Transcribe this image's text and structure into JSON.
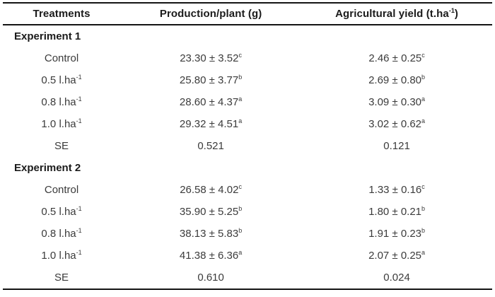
{
  "table": {
    "header": {
      "treatments": "Treatments",
      "production": "Production/plant (g)",
      "yield_pre": "Agricultural yield (t.ha",
      "yield_sup": "-1",
      "yield_post": ")"
    },
    "sections": [
      {
        "title": "Experiment 1",
        "rows": [
          {
            "treatment": "Control",
            "treatment_sup": "",
            "production": "23.30 ± 3.52",
            "production_sup": "c",
            "yield": "2.46 ± 0.25",
            "yield_sup": "c"
          },
          {
            "treatment": "0.5 l.ha",
            "treatment_sup": "-1",
            "production": "25.80 ± 3.77",
            "production_sup": "b",
            "yield": "2.69 ± 0.80",
            "yield_sup": "b"
          },
          {
            "treatment": "0.8 l.ha",
            "treatment_sup": "-1",
            "production": "28.60 ± 4.37",
            "production_sup": "a",
            "yield": "3.09 ± 0.30",
            "yield_sup": "a"
          },
          {
            "treatment": "1.0 l.ha",
            "treatment_sup": "-1",
            "production": "29.32 ± 4.51",
            "production_sup": "a",
            "yield": "3.02 ± 0.62",
            "yield_sup": "a"
          },
          {
            "treatment": "SE",
            "treatment_sup": "",
            "production": "0.521",
            "production_sup": "",
            "yield": "0.121",
            "yield_sup": ""
          }
        ]
      },
      {
        "title": "Experiment 2",
        "rows": [
          {
            "treatment": "Control",
            "treatment_sup": "",
            "production": "26.58 ± 4.02",
            "production_sup": "c",
            "yield": "1.33 ± 0.16",
            "yield_sup": "c"
          },
          {
            "treatment": "0.5 l.ha",
            "treatment_sup": "-1",
            "production": "35.90 ± 5.25",
            "production_sup": "b",
            "yield": "1.80 ± 0.21",
            "yield_sup": "b"
          },
          {
            "treatment": "0.8 l.ha",
            "treatment_sup": "-1",
            "production": "38.13 ± 5.83",
            "production_sup": "b",
            "yield": "1.91 ± 0.23",
            "yield_sup": "b"
          },
          {
            "treatment": "1.0 l.ha",
            "treatment_sup": "-1",
            "production": "41.38 ± 6.36",
            "production_sup": "a",
            "yield": "2.07 ± 0.25",
            "yield_sup": "a"
          },
          {
            "treatment": "SE",
            "treatment_sup": "",
            "production": "0.610",
            "production_sup": "",
            "yield": "0.024",
            "yield_sup": ""
          }
        ]
      }
    ],
    "colors": {
      "rule": "#141414",
      "header_text": "#1b1b1b",
      "body_text": "#3b3b3b",
      "background": "#ffffff"
    }
  }
}
